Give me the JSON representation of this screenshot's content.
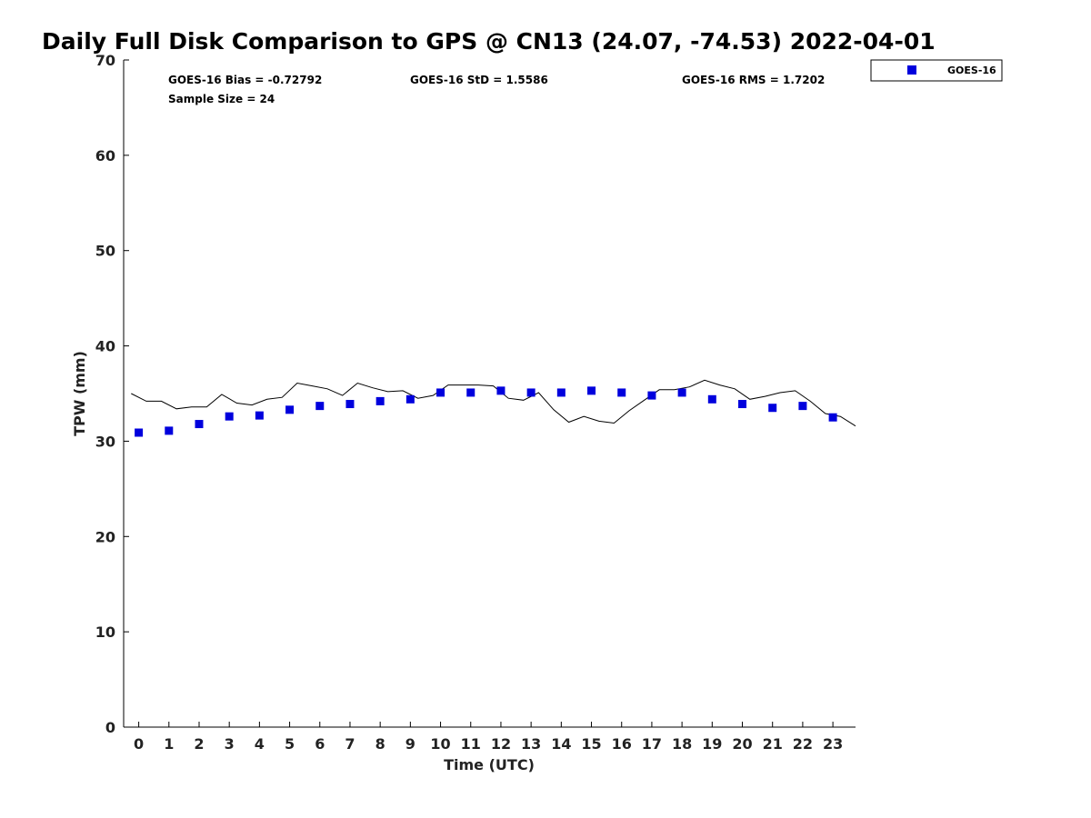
{
  "chart_data": {
    "type": "scatter",
    "title": "Daily Full Disk Comparison to GPS @ CN13 (24.07, -74.53) 2022-04-01",
    "xlabel": "Time (UTC)",
    "ylabel": "TPW (mm)",
    "xlim": [
      -0.5,
      23.75
    ],
    "ylim": [
      0,
      70
    ],
    "x_ticks": [
      "0",
      "1",
      "2",
      "3",
      "4",
      "5",
      "6",
      "7",
      "8",
      "9",
      "10",
      "11",
      "12",
      "13",
      "14",
      "15",
      "16",
      "17",
      "18",
      "19",
      "20",
      "21",
      "22",
      "23"
    ],
    "y_ticks": [
      "0",
      "10",
      "20",
      "30",
      "40",
      "50",
      "60",
      "70"
    ],
    "grid": false,
    "legend": {
      "position": "top-right",
      "entries": [
        "GOES-16"
      ]
    },
    "stats": {
      "bias": "GOES-16 Bias = -0.72792",
      "std": "GOES-16 StD = 1.5586",
      "rms": "GOES-16 RMS = 1.7202",
      "sample": "Sample Size = 24"
    },
    "series": [
      {
        "name": "GOES-16",
        "kind": "scatter",
        "color": "#0000dd",
        "x": [
          0,
          1,
          2,
          3,
          4,
          5,
          6,
          7,
          8,
          9,
          10,
          11,
          12,
          13,
          14,
          15,
          16,
          17,
          18,
          19,
          20,
          21,
          22,
          23
        ],
        "y": [
          30.9,
          31.1,
          31.8,
          32.6,
          32.7,
          33.3,
          33.7,
          33.9,
          34.2,
          34.4,
          35.1,
          35.1,
          35.3,
          35.1,
          35.1,
          35.3,
          35.1,
          34.8,
          35.1,
          34.4,
          33.9,
          33.5,
          33.7,
          32.5
        ]
      },
      {
        "name": "GPS",
        "kind": "line",
        "color": "#000000",
        "x": [
          -0.25,
          0.25,
          0.75,
          1.25,
          1.75,
          2.25,
          2.75,
          3.25,
          3.75,
          4.25,
          4.75,
          5.25,
          5.75,
          6.25,
          6.75,
          7.25,
          7.75,
          8.25,
          8.75,
          9.25,
          9.75,
          10.25,
          10.75,
          11.25,
          11.75,
          12.25,
          12.75,
          13.25,
          13.75,
          14.25,
          14.75,
          15.25,
          15.75,
          16.25,
          16.75,
          17.25,
          17.75,
          18.25,
          18.75,
          19.25,
          19.75,
          20.25,
          20.75,
          21.25,
          21.75,
          22.25,
          22.75,
          23.25,
          23.75
        ],
        "y": [
          35.0,
          34.2,
          34.2,
          33.4,
          33.6,
          33.6,
          34.9,
          34.0,
          33.8,
          34.4,
          34.6,
          36.1,
          35.8,
          35.5,
          34.8,
          36.1,
          35.6,
          35.2,
          35.3,
          34.5,
          34.8,
          35.9,
          35.9,
          35.9,
          35.8,
          34.5,
          34.3,
          35.1,
          33.3,
          32.0,
          32.6,
          32.1,
          31.9,
          33.2,
          34.3,
          35.4,
          35.4,
          35.7,
          36.4,
          35.9,
          35.5,
          34.4,
          34.7,
          35.1,
          35.3,
          34.2,
          32.9,
          32.6,
          31.6
        ]
      }
    ]
  }
}
